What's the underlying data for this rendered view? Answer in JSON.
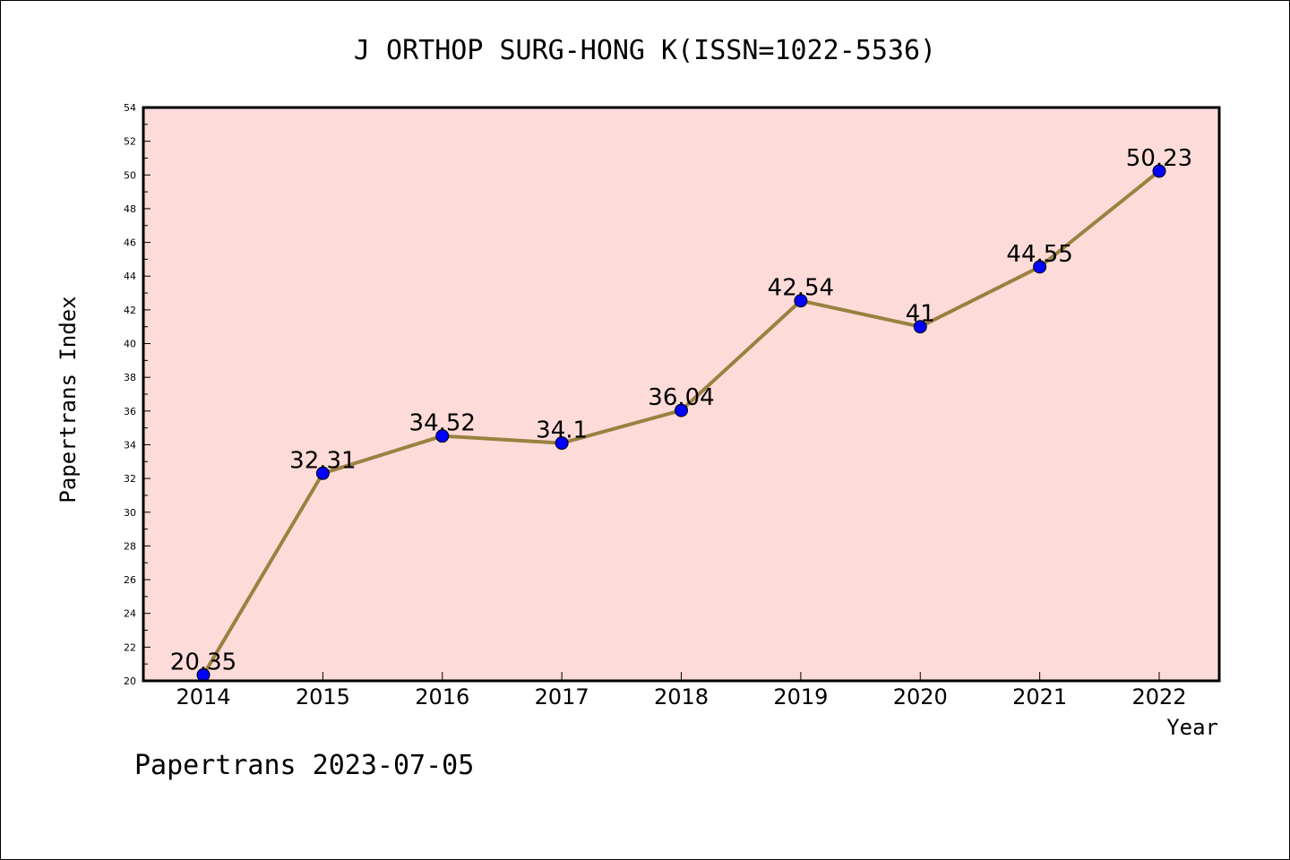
{
  "chart_data": {
    "type": "line",
    "title": "J ORTHOP SURG-HONG K(ISSN=1022-5536)",
    "xlabel": "Year",
    "ylabel": "Papertrans Index",
    "categories": [
      "2014",
      "2015",
      "2016",
      "2017",
      "2018",
      "2019",
      "2020",
      "2021",
      "2022"
    ],
    "series": [
      {
        "values": [
          20.35,
          32.31,
          34.52,
          34.1,
          36.04,
          42.54,
          41,
          44.55,
          50.23
        ],
        "labels": [
          "20.35",
          "32.31",
          "34.52",
          "34.1",
          "36.04",
          "42.54",
          "41",
          "44.55",
          "50.23"
        ]
      }
    ],
    "ylim": [
      20,
      54
    ],
    "yticks": [
      "20",
      "22",
      "24",
      "26",
      "28",
      "30",
      "32",
      "34",
      "36",
      "38",
      "40",
      "42",
      "44",
      "46",
      "48",
      "50",
      "52",
      "54"
    ],
    "grid": false,
    "colors": {
      "plot_background": "#fddbd9",
      "line": "#9b8040",
      "marker": "#0000ff"
    }
  },
  "footer": "Papertrans 2023-07-05"
}
